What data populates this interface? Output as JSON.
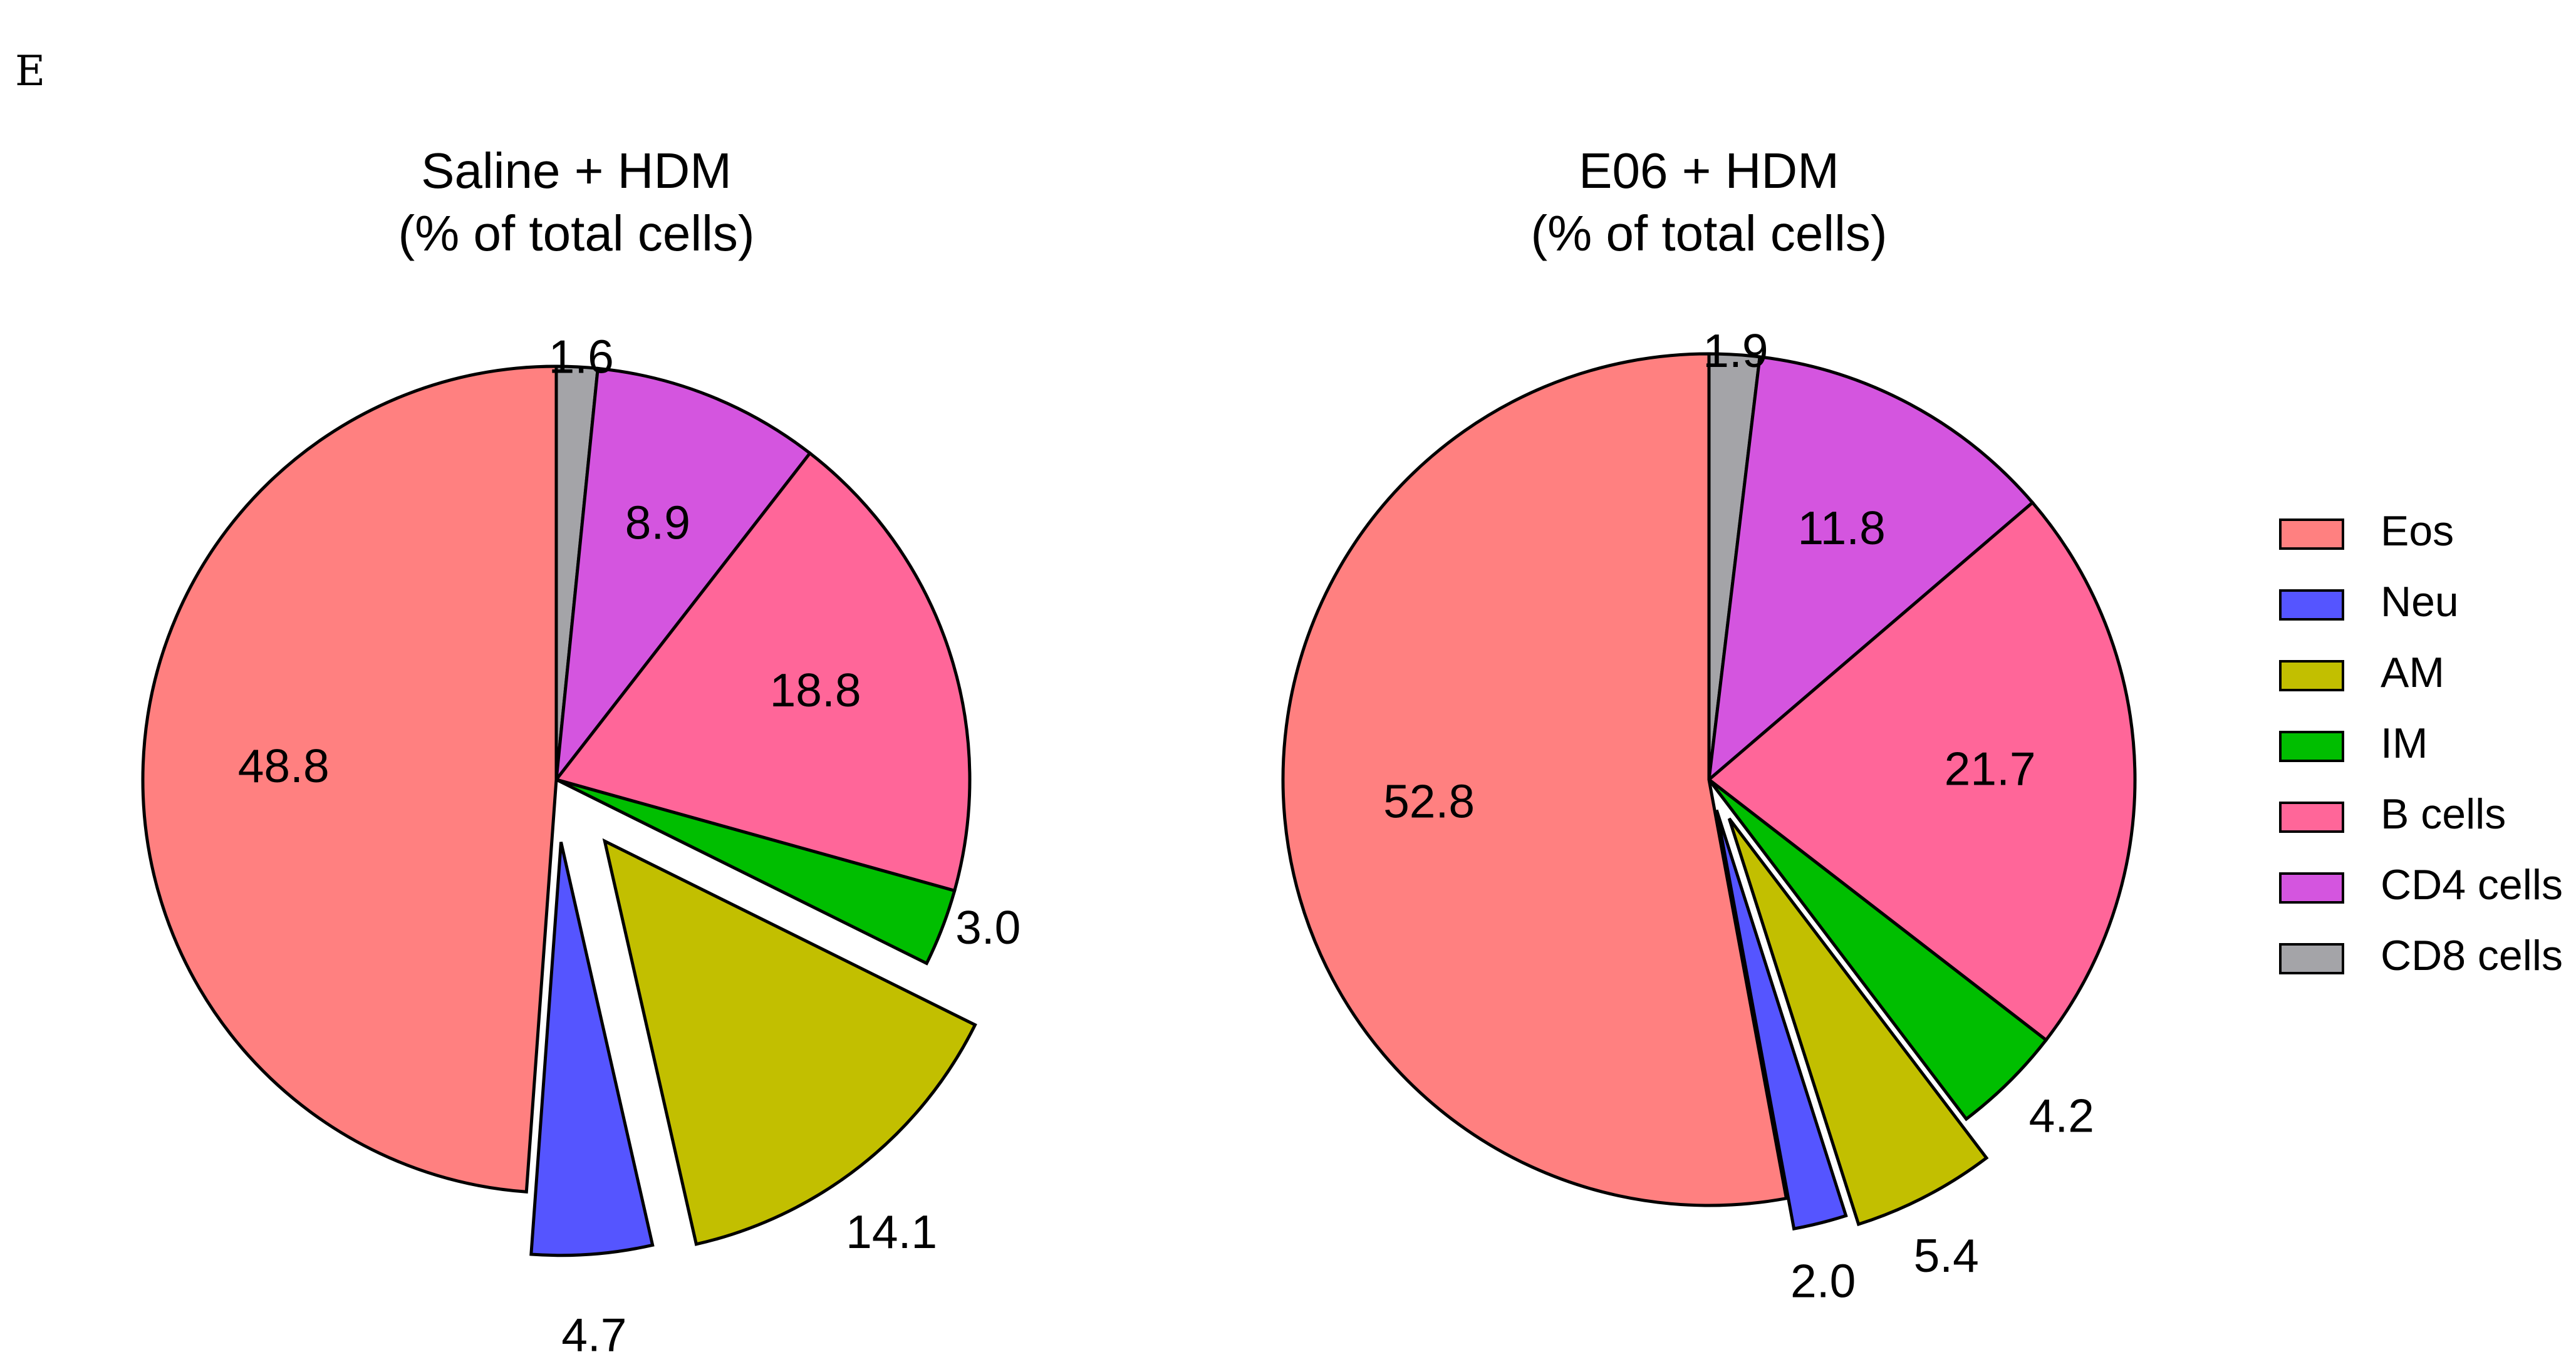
{
  "panel_label": "E",
  "legend": {
    "items": [
      {
        "label": "Eos",
        "color": "#FF8080"
      },
      {
        "label": "Neu",
        "color": "#5555FF"
      },
      {
        "label": "AM",
        "color": "#C2BF00"
      },
      {
        "label": "IM",
        "color": "#00BE00"
      },
      {
        "label": "B cells",
        "color": "#FF6699"
      },
      {
        "label": "CD4 cells",
        "color": "#D455DF"
      },
      {
        "label": "CD8 cells",
        "color": "#A4A4A8"
      }
    ]
  },
  "chart_data": [
    {
      "type": "pie",
      "title_line1": "Saline + HDM",
      "title_line2": "(% of total cells)",
      "categories": [
        "CD8 cells",
        "CD4 cells",
        "B cells",
        "IM",
        "AM",
        "Neu",
        "Eos"
      ],
      "values": [
        1.6,
        8.9,
        18.8,
        3.0,
        14.1,
        4.7,
        48.8
      ],
      "labels": [
        "1.6",
        "8.9",
        "18.8",
        "3.0",
        "14.1",
        "4.7",
        "48.8"
      ],
      "exploded": [
        "AM",
        "Neu"
      ]
    },
    {
      "type": "pie",
      "title_line1": "E06 + HDM",
      "title_line2": "(% of total cells)",
      "categories": [
        "CD8 cells",
        "CD4 cells",
        "B cells",
        "IM",
        "AM",
        "Neu",
        "Eos"
      ],
      "values": [
        1.9,
        11.8,
        21.7,
        4.2,
        5.4,
        2.0,
        52.8
      ],
      "labels": [
        "1.9",
        "11.8",
        "21.7",
        "4.2",
        "5.4",
        "2.0",
        "52.8"
      ],
      "exploded": [
        "AM",
        "Neu"
      ]
    }
  ]
}
